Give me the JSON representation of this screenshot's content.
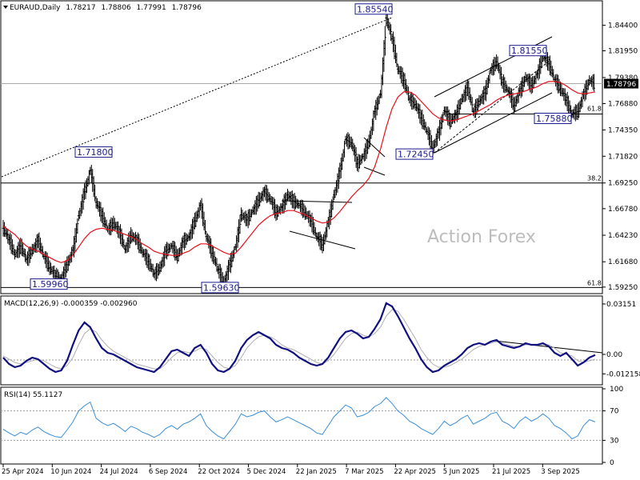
{
  "header": {
    "symbol": "EURAUD,Daily",
    "open": "1.78217",
    "high": "1.78806",
    "low": "1.77991",
    "close": "1.78796"
  },
  "watermark": "Action Forex",
  "current_price_label": "1.78796",
  "colors": {
    "price_bars": "#000000",
    "moving_average": "#e8101a",
    "macd_main": "#101080",
    "macd_signal": "#b0b0b0",
    "rsi_line": "#3a8fd8",
    "annotation_text": "#1a1a8c",
    "trendline": "#000000",
    "watermark": "#bdbdbd"
  },
  "chart_data": [
    {
      "type": "line",
      "panel": "price",
      "instrument": "EURAUD",
      "timeframe": "Daily",
      "ylim": [
        1.587,
        1.866
      ],
      "yticks": [
        "1.84400",
        "1.81950",
        "1.79380",
        "1.76880",
        "1.74350",
        "1.71820",
        "1.69250",
        "1.66780",
        "1.64230",
        "1.61680",
        "1.59250"
      ],
      "x_labels": [
        "25 Apr 2024",
        "10 Jun 2024",
        "24 Jul 2024",
        "6 Sep 2024",
        "22 Oct 2024",
        "5 Dec 2024",
        "22 Jan 2025",
        "7 Mar 2025",
        "22 Apr 2025",
        "5 Jun 2025",
        "21 Jul 2025",
        "3 Sep 2025"
      ],
      "series": [
        {
          "values": [
            1.649,
            1.638,
            1.624,
            1.632,
            1.619,
            1.628,
            1.637,
            1.622,
            1.611,
            1.603,
            1.601,
            1.614,
            1.628,
            1.661,
            1.684,
            1.704,
            1.674,
            1.661,
            1.648,
            1.654,
            1.645,
            1.629,
            1.642,
            1.638,
            1.626,
            1.617,
            1.605,
            1.611,
            1.627,
            1.632,
            1.622,
            1.636,
            1.641,
            1.656,
            1.671,
            1.641,
            1.625,
            1.609,
            1.597,
            1.614,
            1.631,
            1.662,
            1.657,
            1.666,
            1.676,
            1.684,
            1.677,
            1.664,
            1.669,
            1.681,
            1.675,
            1.671,
            1.664,
            1.656,
            1.641,
            1.633,
            1.655,
            1.681,
            1.704,
            1.734,
            1.731,
            1.711,
            1.718,
            1.732,
            1.761,
            1.778,
            1.851,
            1.831,
            1.802,
            1.791,
            1.773,
            1.768,
            1.755,
            1.742,
            1.726,
            1.741,
            1.762,
            1.752,
            1.758,
            1.773,
            1.784,
            1.761,
            1.771,
            1.779,
            1.801,
            1.809,
            1.789,
            1.781,
            1.767,
            1.781,
            1.794,
            1.786,
            1.797,
            1.815,
            1.807,
            1.792,
            1.783,
            1.772,
            1.759,
            1.761,
            1.778,
            1.791,
            1.788
          ]
        }
      ],
      "moving_average": [
        1.651,
        1.647,
        1.643,
        1.637,
        1.632,
        1.629,
        1.627,
        1.624,
        1.621,
        1.618,
        1.616,
        1.618,
        1.623,
        1.631,
        1.639,
        1.645,
        1.648,
        1.649,
        1.648,
        1.647,
        1.645,
        1.643,
        1.641,
        1.638,
        1.634,
        1.631,
        1.627,
        1.625,
        1.624,
        1.623,
        1.623,
        1.625,
        1.627,
        1.631,
        1.634,
        1.634,
        1.632,
        1.629,
        1.626,
        1.624,
        1.625,
        1.631,
        1.638,
        1.645,
        1.652,
        1.657,
        1.661,
        1.663,
        1.664,
        1.666,
        1.666,
        1.664,
        1.662,
        1.659,
        1.656,
        1.654,
        1.655,
        1.659,
        1.665,
        1.672,
        1.679,
        1.685,
        1.69,
        1.697,
        1.708,
        1.725,
        1.746,
        1.764,
        1.775,
        1.78,
        1.78,
        1.777,
        1.771,
        1.765,
        1.759,
        1.755,
        1.753,
        1.752,
        1.753,
        1.755,
        1.757,
        1.759,
        1.762,
        1.765,
        1.768,
        1.772,
        1.775,
        1.777,
        1.778,
        1.779,
        1.781,
        1.783,
        1.785,
        1.788,
        1.79,
        1.79,
        1.789,
        1.786,
        1.782,
        1.779,
        1.778,
        1.779,
        1.78
      ],
      "horizontal_levels": [
        {
          "price": 1.6925,
          "label": "38.2"
        },
        {
          "price": 1.5921,
          "label": "61.8"
        },
        {
          "price": 1.7588,
          "label": "61.8"
        },
        {
          "price": 1.78796,
          "label": "1.78796"
        }
      ],
      "annotations": [
        {
          "text": "1.85540",
          "date": "7 Mar 2025",
          "price": 1.8554
        },
        {
          "text": "1.81550",
          "date": "21 Jul 2025",
          "price": 1.8155
        },
        {
          "text": "1.75880",
          "date": "3 Sep 2025",
          "price": 1.7588
        },
        {
          "text": "1.72450",
          "date": "22 Apr 2025",
          "price": 1.7245
        },
        {
          "text": "1.71800",
          "date": "24 Jul 2024",
          "price": 1.718
        },
        {
          "text": "1.59960",
          "date": "10 Jun 2024",
          "price": 1.5996
        },
        {
          "text": "1.59630",
          "date": "22 Oct 2024",
          "price": 1.5963
        }
      ]
    },
    {
      "type": "line",
      "panel": "macd",
      "title": "MACD(12,26,9) -0.000359 -0.002960",
      "ylim": [
        -0.0185,
        0.0355
      ],
      "yticks": [
        "0.03151",
        "0.00",
        "-0.012158"
      ],
      "series": [
        {
          "name": "MACD",
          "values": [
            -0.002,
            -0.006,
            -0.008,
            -0.007,
            -0.004,
            -0.002,
            -0.003,
            -0.006,
            -0.009,
            -0.011,
            -0.01,
            -0.004,
            0.006,
            0.015,
            0.02,
            0.017,
            0.01,
            0.004,
            0.001,
            0.0,
            -0.002,
            -0.004,
            -0.006,
            -0.008,
            -0.009,
            -0.01,
            -0.011,
            -0.008,
            -0.003,
            0.002,
            0.003,
            0.001,
            -0.001,
            0.004,
            0.006,
            0.001,
            -0.006,
            -0.01,
            -0.011,
            -0.009,
            -0.004,
            0.004,
            0.009,
            0.012,
            0.014,
            0.012,
            0.01,
            0.006,
            0.004,
            0.003,
            0.001,
            -0.002,
            -0.004,
            -0.006,
            -0.007,
            -0.006,
            -0.002,
            0.004,
            0.01,
            0.014,
            0.015,
            0.013,
            0.01,
            0.011,
            0.016,
            0.022,
            0.032,
            0.03,
            0.024,
            0.017,
            0.01,
            0.004,
            -0.003,
            -0.008,
            -0.011,
            -0.01,
            -0.007,
            -0.005,
            -0.003,
            0.0,
            0.004,
            0.006,
            0.007,
            0.006,
            0.008,
            0.009,
            0.006,
            0.005,
            0.004,
            0.005,
            0.007,
            0.006,
            0.006,
            0.007,
            0.005,
            0.001,
            -0.001,
            0.001,
            -0.003,
            -0.007,
            -0.005,
            -0.002,
            -0.0004
          ]
        },
        {
          "name": "Signal",
          "values": [
            -0.001,
            -0.003,
            -0.005,
            -0.006,
            -0.005,
            -0.004,
            -0.003,
            -0.004,
            -0.006,
            -0.008,
            -0.009,
            -0.007,
            -0.002,
            0.006,
            0.013,
            0.016,
            0.014,
            0.009,
            0.005,
            0.002,
            0.0,
            -0.002,
            -0.004,
            -0.006,
            -0.007,
            -0.008,
            -0.009,
            -0.009,
            -0.006,
            -0.002,
            0.001,
            0.002,
            0.001,
            0.002,
            0.004,
            0.003,
            -0.001,
            -0.005,
            -0.008,
            -0.009,
            -0.007,
            -0.002,
            0.004,
            0.008,
            0.011,
            0.012,
            0.011,
            0.009,
            0.006,
            0.004,
            0.003,
            0.001,
            -0.001,
            -0.003,
            -0.005,
            -0.006,
            -0.004,
            0.0,
            0.005,
            0.01,
            0.013,
            0.014,
            0.012,
            0.011,
            0.013,
            0.017,
            0.024,
            0.028,
            0.027,
            0.022,
            0.016,
            0.01,
            0.003,
            -0.002,
            -0.006,
            -0.008,
            -0.008,
            -0.007,
            -0.005,
            -0.003,
            0.0,
            0.003,
            0.005,
            0.006,
            0.007,
            0.008,
            0.007,
            0.006,
            0.005,
            0.005,
            0.006,
            0.006,
            0.006,
            0.006,
            0.006,
            0.004,
            0.001,
            0.0,
            -0.001,
            -0.004,
            -0.005,
            -0.004,
            -0.003
          ]
        }
      ]
    },
    {
      "type": "line",
      "panel": "rsi",
      "title": "RSI(14) 55.1127",
      "ylim": [
        0,
        100
      ],
      "yticks": [
        "100",
        "70",
        "30",
        "0"
      ],
      "levels": [
        70,
        30
      ],
      "series": [
        {
          "name": "RSI",
          "values": [
            45,
            40,
            36,
            41,
            38,
            44,
            48,
            42,
            38,
            35,
            34,
            44,
            55,
            70,
            77,
            82,
            60,
            54,
            50,
            53,
            48,
            42,
            49,
            46,
            41,
            38,
            34,
            38,
            46,
            50,
            45,
            52,
            55,
            60,
            66,
            50,
            42,
            36,
            32,
            42,
            52,
            66,
            62,
            64,
            68,
            70,
            62,
            55,
            58,
            62,
            58,
            54,
            50,
            46,
            40,
            38,
            50,
            62,
            70,
            78,
            74,
            62,
            64,
            68,
            76,
            80,
            88,
            80,
            70,
            64,
            56,
            52,
            46,
            42,
            38,
            46,
            56,
            50,
            54,
            60,
            64,
            52,
            56,
            60,
            66,
            68,
            56,
            52,
            46,
            56,
            62,
            56,
            60,
            66,
            60,
            50,
            46,
            40,
            32,
            36,
            50,
            58,
            55
          ]
        }
      ]
    }
  ]
}
